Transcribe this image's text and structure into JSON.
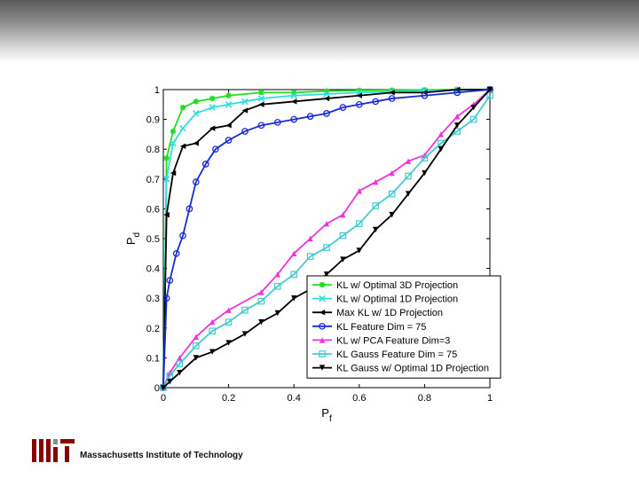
{
  "chart_data": {
    "type": "line",
    "title": "",
    "xlabel": "P_f",
    "ylabel": "P_d",
    "xlim": [
      0,
      1
    ],
    "ylim": [
      0,
      1
    ],
    "x_ticks": [
      "0",
      "0.2",
      "0.4",
      "0.6",
      "0.8",
      "1"
    ],
    "y_ticks": [
      "0",
      "0.1",
      "0.2",
      "0.3",
      "0.4",
      "0.5",
      "0.6",
      "0.7",
      "0.8",
      "0.9",
      "1"
    ],
    "grid": false,
    "legend_position": "bottom-right",
    "series": [
      {
        "name": "KL w/ Optimal 3D Projection",
        "color": "#22dd22",
        "marker": "star",
        "x": [
          0,
          0.01,
          0.03,
          0.06,
          0.1,
          0.15,
          0.2,
          0.3,
          0.4,
          0.5,
          0.6,
          0.7,
          0.8,
          0.9,
          1.0
        ],
        "y": [
          0,
          0.77,
          0.86,
          0.94,
          0.96,
          0.97,
          0.98,
          0.99,
          0.99,
          0.995,
          0.997,
          0.998,
          0.999,
          1.0,
          1.0
        ]
      },
      {
        "name": "KL w/ Optimal 1D Projection",
        "color": "#33dddd",
        "marker": "x",
        "x": [
          0,
          0.01,
          0.03,
          0.06,
          0.1,
          0.15,
          0.2,
          0.25,
          0.3,
          0.4,
          0.5,
          0.6,
          0.7,
          0.8,
          0.9,
          1.0
        ],
        "y": [
          0,
          0.7,
          0.82,
          0.87,
          0.92,
          0.94,
          0.95,
          0.96,
          0.97,
          0.98,
          0.985,
          0.99,
          0.993,
          0.996,
          0.998,
          1.0
        ]
      },
      {
        "name": "Max KL w/ 1D Projection",
        "color": "#000000",
        "marker": "triangle-left",
        "x": [
          0,
          0.01,
          0.03,
          0.06,
          0.1,
          0.15,
          0.2,
          0.25,
          0.3,
          0.4,
          0.5,
          0.6,
          0.7,
          0.8,
          0.9,
          1.0
        ],
        "y": [
          0,
          0.58,
          0.72,
          0.81,
          0.82,
          0.87,
          0.88,
          0.93,
          0.95,
          0.96,
          0.97,
          0.98,
          0.99,
          0.99,
          1.0,
          1.0
        ]
      },
      {
        "name": "KL Feature Dim = 75",
        "color": "#1a2ccf",
        "marker": "circle",
        "x": [
          0,
          0.01,
          0.02,
          0.04,
          0.06,
          0.08,
          0.1,
          0.13,
          0.16,
          0.2,
          0.25,
          0.3,
          0.35,
          0.4,
          0.45,
          0.5,
          0.55,
          0.6,
          0.65,
          0.7,
          0.8,
          0.9,
          1.0
        ],
        "y": [
          0,
          0.3,
          0.36,
          0.45,
          0.51,
          0.6,
          0.69,
          0.75,
          0.8,
          0.83,
          0.86,
          0.88,
          0.89,
          0.9,
          0.91,
          0.92,
          0.94,
          0.95,
          0.96,
          0.97,
          0.98,
          0.99,
          1.0
        ]
      },
      {
        "name": "KL w/ PCA Feature Dim=3",
        "color": "#ee33dd",
        "marker": "triangle-up",
        "x": [
          0,
          0.02,
          0.05,
          0.1,
          0.15,
          0.2,
          0.3,
          0.35,
          0.4,
          0.45,
          0.5,
          0.55,
          0.6,
          0.65,
          0.7,
          0.75,
          0.8,
          0.85,
          0.9,
          0.95,
          1.0
        ],
        "y": [
          0,
          0.05,
          0.1,
          0.17,
          0.22,
          0.26,
          0.32,
          0.38,
          0.45,
          0.5,
          0.55,
          0.58,
          0.66,
          0.69,
          0.72,
          0.76,
          0.78,
          0.85,
          0.91,
          0.95,
          1.0
        ]
      },
      {
        "name": "KL Gauss Feature Dim = 75",
        "color": "#44cccc",
        "marker": "square",
        "x": [
          0,
          0.02,
          0.05,
          0.1,
          0.15,
          0.2,
          0.25,
          0.3,
          0.35,
          0.4,
          0.45,
          0.5,
          0.55,
          0.6,
          0.65,
          0.7,
          0.75,
          0.8,
          0.85,
          0.9,
          0.95,
          1.0
        ],
        "y": [
          0,
          0.04,
          0.08,
          0.14,
          0.19,
          0.22,
          0.26,
          0.29,
          0.34,
          0.38,
          0.44,
          0.47,
          0.51,
          0.55,
          0.61,
          0.65,
          0.71,
          0.77,
          0.82,
          0.86,
          0.9,
          0.98
        ]
      },
      {
        "name": "KL Gauss w/ Optimal 1D Projection",
        "color": "#000000",
        "marker": "triangle-down",
        "x": [
          0,
          0.02,
          0.05,
          0.1,
          0.15,
          0.2,
          0.25,
          0.3,
          0.35,
          0.4,
          0.45,
          0.5,
          0.55,
          0.6,
          0.65,
          0.7,
          0.75,
          0.8,
          0.85,
          0.9,
          0.95,
          1.0
        ],
        "y": [
          0,
          0.02,
          0.05,
          0.1,
          0.12,
          0.15,
          0.18,
          0.22,
          0.25,
          0.3,
          0.33,
          0.38,
          0.43,
          0.46,
          0.53,
          0.58,
          0.65,
          0.72,
          0.8,
          0.88,
          0.94,
          1.0
        ]
      }
    ]
  },
  "footer": {
    "institution": "Massachusetts Institute of Technology"
  }
}
